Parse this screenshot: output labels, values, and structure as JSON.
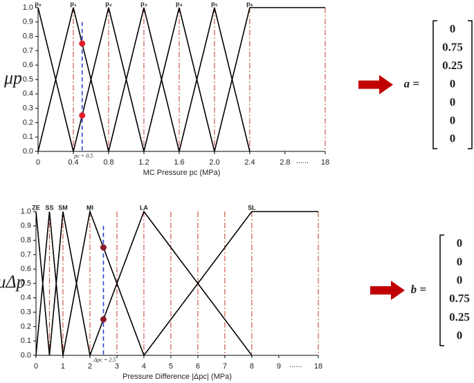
{
  "chart_data": [
    {
      "type": "line",
      "ylabel": "μp",
      "xlabel": "MC Pressure pc (MPa)",
      "xlim": [
        0,
        18
      ],
      "ylim": [
        0,
        1
      ],
      "xticks": [
        0,
        0.4,
        0.8,
        1.2,
        1.6,
        {
          "value": 2,
          "label": "2.0"
        },
        2.4,
        2.8,
        18
      ],
      "xbreak_label": "......",
      "yticks": [
        {
          "value": 0,
          "label": "0.0"
        },
        0.1,
        0.2,
        0.3,
        0.4,
        0.5,
        0.6,
        0.7,
        0.8,
        0.9,
        {
          "value": 1,
          "label": "1.0"
        }
      ],
      "series": [
        {
          "name": "p₀",
          "color": "#000000",
          "x": [
            0,
            0.4
          ],
          "values": [
            1,
            0
          ]
        },
        {
          "name": "p₁",
          "color": "#000000",
          "x": [
            0,
            0.4,
            0.8
          ],
          "values": [
            0,
            1,
            0
          ]
        },
        {
          "name": "p₂",
          "color": "#000000",
          "x": [
            0.4,
            0.8,
            1.2
          ],
          "values": [
            0,
            1,
            0
          ]
        },
        {
          "name": "p₃",
          "color": "#000000",
          "x": [
            0.8,
            1.2,
            1.6
          ],
          "values": [
            0,
            1,
            0
          ]
        },
        {
          "name": "p₄",
          "color": "#000000",
          "x": [
            1.2,
            1.6,
            2
          ],
          "values": [
            0,
            1,
            0
          ]
        },
        {
          "name": "p₅",
          "color": "#000000",
          "x": [
            1.6,
            2,
            2.4
          ],
          "values": [
            0,
            1,
            0
          ]
        },
        {
          "name": "p₆",
          "color": "#000000",
          "x": [
            2,
            2.4,
            18
          ],
          "values": [
            0,
            1,
            1
          ]
        }
      ],
      "vlines": [
        0.4,
        0.8,
        1.2,
        1.6,
        2,
        2.4,
        18
      ],
      "vline_color": "#c0392b",
      "cursor": {
        "x": 0.5,
        "label": "pc = 0.5",
        "color": "#2a3fd0"
      },
      "markers": {
        "x": 0.5,
        "values": [
          0.75,
          0.25
        ],
        "color": "#e0202a"
      },
      "vector": {
        "name": "a =",
        "values": [
          "0",
          "0.75",
          "0.25",
          "0",
          "0",
          "0",
          "0"
        ]
      }
    },
    {
      "type": "line",
      "ylabel": "μΔp",
      "xlabel": "Pressure Difference |Δpc| (MPa)",
      "xlim": [
        0,
        18
      ],
      "ylim": [
        0,
        1
      ],
      "xticks": [
        0,
        1,
        2,
        3,
        4,
        5,
        6,
        7,
        8,
        9,
        18
      ],
      "xbreak_label": "......",
      "yticks": [
        {
          "value": 0,
          "label": "0.0"
        },
        0.1,
        0.2,
        0.3,
        0.4,
        0.5,
        0.6,
        0.7,
        0.8,
        0.9,
        {
          "value": 1,
          "label": "1.0"
        }
      ],
      "series": [
        {
          "name": "ZE",
          "color": "#000000",
          "x": [
            0,
            0.5
          ],
          "values": [
            1,
            0
          ]
        },
        {
          "name": "SS",
          "color": "#000000",
          "x": [
            0,
            0.5,
            1
          ],
          "values": [
            0,
            1,
            0
          ]
        },
        {
          "name": "SM",
          "color": "#000000",
          "x": [
            0.5,
            1,
            2
          ],
          "values": [
            0,
            1,
            0
          ]
        },
        {
          "name": "MI",
          "color": "#000000",
          "x": [
            1,
            2,
            4
          ],
          "values": [
            0,
            1,
            0
          ]
        },
        {
          "name": "LA",
          "color": "#000000",
          "x": [
            2,
            4,
            8
          ],
          "values": [
            0,
            1,
            0
          ]
        },
        {
          "name": "SL",
          "color": "#000000",
          "x": [
            4,
            8,
            18
          ],
          "values": [
            0,
            1,
            1
          ]
        }
      ],
      "vlines": [
        0.5,
        1,
        2,
        3,
        4,
        5,
        6,
        7,
        8,
        18
      ],
      "vline_color": "#c0392b",
      "cursor": {
        "x": 2.5,
        "label": "Δpc = 2.5",
        "color": "#2a3fd0"
      },
      "markers": {
        "x": 2.5,
        "values": [
          0.75,
          0.25
        ],
        "color": "#8b1a2b"
      },
      "vector": {
        "name": "b =",
        "values": [
          "0",
          "0",
          "0",
          "0.75",
          "0.25",
          "0"
        ]
      }
    }
  ]
}
